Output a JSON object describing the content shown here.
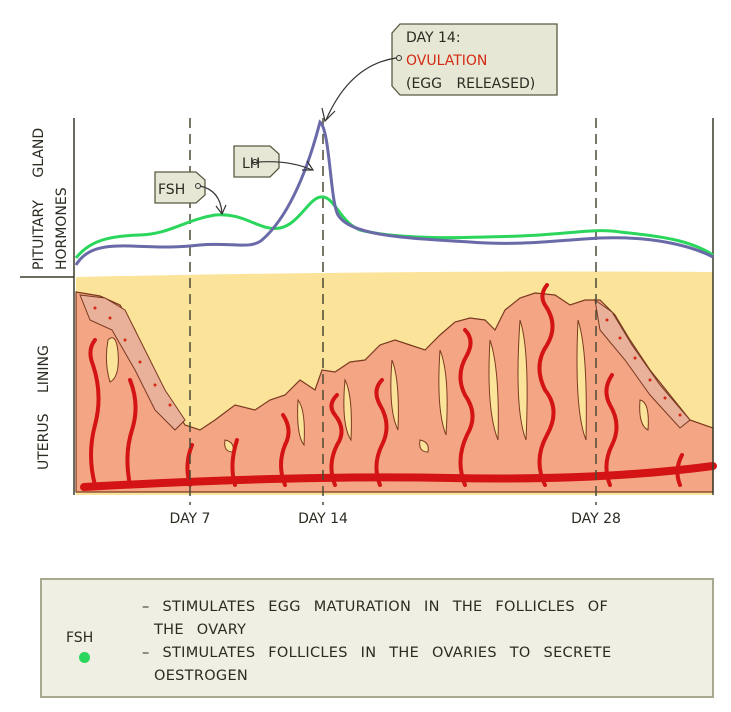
{
  "axis_labels": {
    "pituitary_line1": "PITUITARY GLAND",
    "pituitary_line2": "HORMONES",
    "uterus": "UTERUS LINING"
  },
  "callouts": {
    "fsh": "FSH",
    "lh": "LH",
    "ovulation_day": "DAY 14:",
    "ovulation": "OVULATION",
    "egg_released": "(EGG RELEASED)"
  },
  "day_labels": [
    "DAY 7",
    "DAY 14",
    "DAY 28"
  ],
  "legend": {
    "key": "FSH",
    "lines": [
      "– STIMULATES EGG MATURATION IN THE FOLLICLES OF",
      "THE OVARY",
      "– STIMULATES FOLLICLES IN THE OVARIES TO SECRETE",
      "OESTROGEN"
    ]
  },
  "colors": {
    "fsh": "#2bd65c",
    "lh": "#6a6aa8",
    "ovulation_text": "#d42a14",
    "uterus_lining": "#f4a684",
    "blood_vessel": "#d41414",
    "background_band": "#fbe39a"
  }
}
